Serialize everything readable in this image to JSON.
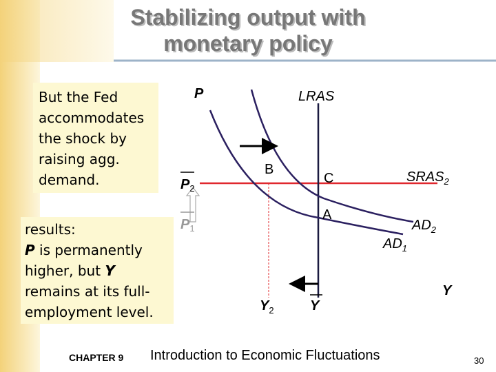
{
  "header": {
    "title_lines": [
      "Stabilizing output with",
      "monetary policy"
    ]
  },
  "box1": {
    "lines": [
      "But the Fed",
      "accommodates",
      "the shock by",
      "raising agg.",
      "demand."
    ]
  },
  "box2": {
    "lines": [
      [
        "results:"
      ],
      [
        "P",
        " is permanently"
      ],
      [
        "higher, but ",
        "Y"
      ],
      [
        "remains at its full-"
      ],
      [
        "employment level."
      ]
    ]
  },
  "diagram": {
    "axis_p": "P",
    "axis_y": "Y",
    "lras": "LRAS",
    "points": [
      "A",
      "B",
      "C"
    ],
    "sras2": {
      "base": "SRAS",
      "sub": "2"
    },
    "ad1": {
      "base": "AD",
      "sub": "1"
    },
    "ad2": {
      "base": "AD",
      "sub": "2"
    },
    "p1": {
      "base": "P",
      "sub": "1"
    },
    "p2": {
      "base": "P",
      "sub": "2"
    },
    "y2": {
      "base": "Y",
      "sub": "2"
    },
    "ybar": "Y"
  },
  "footer": {
    "chapter": "CHAPTER 9",
    "subject": "Introduction to Economic Fluctuations",
    "page": "30"
  }
}
